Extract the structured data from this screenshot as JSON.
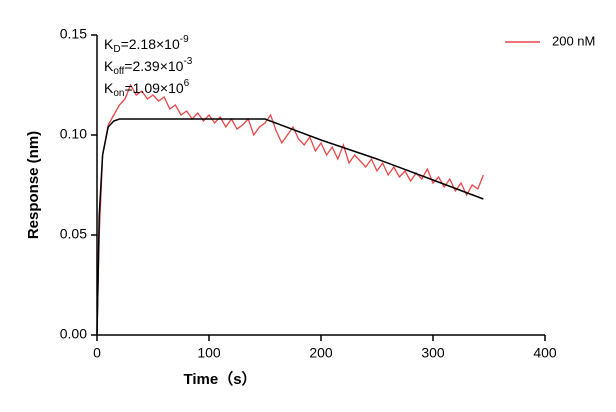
{
  "chart_data": {
    "type": "line",
    "ylabel": "Response (nm)",
    "xlabel": "Time（s）",
    "xlim": [
      0,
      400
    ],
    "xticks": [
      0,
      100,
      200,
      300,
      400
    ],
    "ylim": [
      0,
      0.15
    ],
    "yticks": [
      {
        "value": 0,
        "label": "0.00"
      },
      {
        "value": 0.05,
        "label": "0.05"
      },
      {
        "value": 0.1,
        "label": "0.10"
      },
      {
        "value": 0.15,
        "label": "0.15"
      }
    ],
    "legend": "top-right",
    "annotations": [
      {
        "symbol": "K",
        "subscript": "D",
        "text": "=2.18×10",
        "superscript": "-9"
      },
      {
        "symbol": "K",
        "subscript": "off",
        "text": "=2.39×10",
        "superscript": "-3"
      },
      {
        "symbol": "K",
        "subscript": "on",
        "text": "=1.09×10",
        "superscript": "6"
      }
    ],
    "series": [
      {
        "name": "200 nM",
        "color": "#e8474a",
        "x": [
          0,
          2,
          5,
          10,
          15,
          20,
          25,
          30,
          35,
          40,
          45,
          50,
          55,
          60,
          65,
          70,
          75,
          80,
          85,
          90,
          95,
          100,
          105,
          110,
          115,
          120,
          125,
          130,
          135,
          140,
          145,
          150,
          155,
          160,
          165,
          170,
          175,
          180,
          185,
          190,
          195,
          200,
          205,
          210,
          215,
          220,
          225,
          230,
          235,
          240,
          245,
          250,
          255,
          260,
          265,
          270,
          275,
          280,
          285,
          290,
          295,
          300,
          305,
          310,
          315,
          320,
          325,
          330,
          335,
          340,
          345
        ],
        "values": [
          0,
          0.05,
          0.09,
          0.105,
          0.11,
          0.115,
          0.118,
          0.125,
          0.12,
          0.122,
          0.118,
          0.12,
          0.117,
          0.119,
          0.113,
          0.115,
          0.11,
          0.112,
          0.108,
          0.111,
          0.107,
          0.11,
          0.106,
          0.109,
          0.104,
          0.108,
          0.103,
          0.105,
          0.108,
          0.1,
          0.104,
          0.106,
          0.11,
          0.102,
          0.096,
          0.1,
          0.104,
          0.098,
          0.095,
          0.099,
          0.092,
          0.096,
          0.09,
          0.094,
          0.088,
          0.095,
          0.086,
          0.09,
          0.087,
          0.084,
          0.088,
          0.082,
          0.086,
          0.08,
          0.084,
          0.079,
          0.082,
          0.077,
          0.081,
          0.078,
          0.083,
          0.076,
          0.079,
          0.074,
          0.078,
          0.072,
          0.076,
          0.07,
          0.075,
          0.073,
          0.08
        ]
      },
      {
        "color": "#000000",
        "x": [
          0,
          2,
          5,
          10,
          15,
          20,
          30,
          150,
          200,
          250,
          300,
          345
        ],
        "values": [
          0,
          0.06,
          0.09,
          0.104,
          0.107,
          0.108,
          0.108,
          0.108,
          0.0975,
          0.088,
          0.0775,
          0.068
        ]
      }
    ]
  }
}
